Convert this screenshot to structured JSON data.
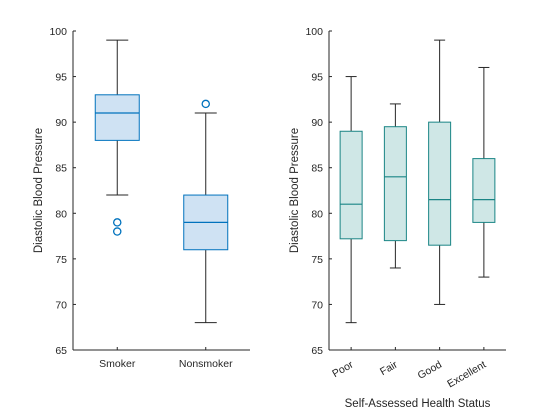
{
  "colors": {
    "axis": "#262626",
    "left_box_fill": "#cfe2f3",
    "left_box_stroke": "#0072bd",
    "right_box_fill": "#cfe7e6",
    "right_box_stroke": "#1a8585",
    "whisker": "#262626",
    "outlier": "#0072bd"
  },
  "chart_data": [
    {
      "type": "box",
      "title": "",
      "xlabel": "",
      "ylabel": "Diastolic Blood Pressure",
      "ylim": [
        65,
        100
      ],
      "yticks": [
        65,
        70,
        75,
        80,
        85,
        90,
        95,
        100
      ],
      "categories": [
        "Smoker",
        "Nonsmoker"
      ],
      "boxes": [
        {
          "category": "Smoker",
          "min": 82,
          "q1": 88,
          "median": 91,
          "q3": 93,
          "max": 99,
          "outliers": [
            78,
            79
          ]
        },
        {
          "category": "Nonsmoker",
          "min": 68,
          "q1": 76,
          "median": 79,
          "q3": 82,
          "max": 91,
          "outliers": [
            92
          ]
        }
      ]
    },
    {
      "type": "box",
      "title": "",
      "xlabel": "Self-Assessed Health Status",
      "ylabel": "Diastolic Blood Pressure",
      "ylim": [
        65,
        100
      ],
      "yticks": [
        65,
        70,
        75,
        80,
        85,
        90,
        95,
        100
      ],
      "categories": [
        "Poor",
        "Fair",
        "Good",
        "Excellent"
      ],
      "tick_rotation": -30,
      "boxes": [
        {
          "category": "Poor",
          "min": 68,
          "q1": 77.2,
          "median": 81,
          "q3": 89,
          "max": 95,
          "outliers": []
        },
        {
          "category": "Fair",
          "min": 74,
          "q1": 77,
          "median": 84,
          "q3": 89.5,
          "max": 92,
          "outliers": []
        },
        {
          "category": "Good",
          "min": 70,
          "q1": 76.5,
          "median": 81.5,
          "q3": 90,
          "max": 99,
          "outliers": []
        },
        {
          "category": "Excellent",
          "min": 73,
          "q1": 79,
          "median": 81.5,
          "q3": 86,
          "max": 96,
          "outliers": []
        }
      ]
    }
  ]
}
